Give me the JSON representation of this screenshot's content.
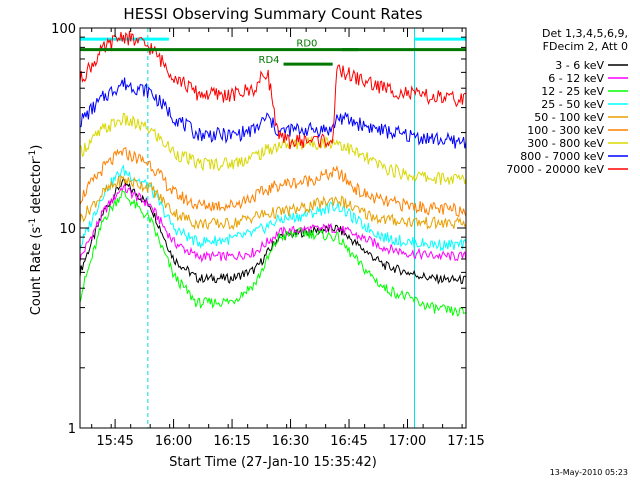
{
  "chart_data": {
    "type": "line",
    "title": "HESSI Observing Summary Count Rates",
    "xlabel": "Start Time (27-Jan-10 15:35:42)",
    "ylabel_main": "Count Rate (s",
    "ylabel_sup": "-1",
    "ylabel_tail": " detector",
    "ylabel_close": ")",
    "y_scale": "log",
    "ylim": [
      1,
      100
    ],
    "xlim": [
      15.6,
      17.25
    ],
    "y_ticks": [
      {
        "v": 1,
        "label": "1"
      },
      {
        "v": 10,
        "label": "10"
      },
      {
        "v": 100,
        "label": "100"
      }
    ],
    "x_ticks": [
      {
        "v": 15.75,
        "label": "15:45"
      },
      {
        "v": 16.0,
        "label": "16:00"
      },
      {
        "v": 16.25,
        "label": "16:15"
      },
      {
        "v": 16.5,
        "label": "16:30"
      },
      {
        "v": 16.75,
        "label": "16:45"
      },
      {
        "v": 17.0,
        "label": "17:00"
      },
      {
        "v": 17.25,
        "label": "17:15"
      }
    ],
    "legend_header": [
      "Det 1,3,4,5,6,9,",
      "FDecim 2, Att 0"
    ],
    "legend_placement": "right",
    "series": [
      {
        "name": "3 - 6 keV",
        "color": "#000000",
        "x": [
          15.6,
          15.7,
          15.78,
          15.9,
          16.0,
          16.1,
          16.25,
          16.35,
          16.45,
          16.55,
          16.7,
          16.8,
          16.9,
          17.0,
          17.1,
          17.2,
          17.25
        ],
        "y": [
          6,
          12,
          17,
          13,
          7,
          5.6,
          5.6,
          6.2,
          9,
          9.5,
          10,
          8,
          6.5,
          6,
          5.6,
          5.5,
          5.5
        ]
      },
      {
        "name": "6 - 12 keV",
        "color": "#ff00ff",
        "x": [
          15.6,
          15.7,
          15.78,
          15.9,
          16.0,
          16.1,
          16.25,
          16.35,
          16.45,
          16.55,
          16.7,
          16.8,
          16.9,
          17.0,
          17.1,
          17.2,
          17.25
        ],
        "y": [
          7,
          12,
          16,
          13,
          8.5,
          7.2,
          7.2,
          7.6,
          9.5,
          9.8,
          10,
          9,
          8,
          7.5,
          7.3,
          7.2,
          7.2
        ]
      },
      {
        "name": "12 - 25 keV",
        "color": "#00ff00",
        "x": [
          15.6,
          15.7,
          15.78,
          15.9,
          16.0,
          16.1,
          16.25,
          16.35,
          16.45,
          16.55,
          16.7,
          16.8,
          16.9,
          17.0,
          17.1,
          17.2,
          17.25
        ],
        "y": [
          4.5,
          11,
          15,
          11,
          5.8,
          4.2,
          4.3,
          5.3,
          9,
          9.5,
          9,
          6.5,
          5,
          4.5,
          4,
          3.8,
          3.8
        ]
      },
      {
        "name": "25 - 50 keV",
        "color": "#00ffff",
        "x": [
          15.6,
          15.7,
          15.78,
          15.9,
          16.0,
          16.1,
          16.25,
          16.35,
          16.45,
          16.55,
          16.7,
          16.8,
          16.9,
          17.0,
          17.1,
          17.2,
          17.25
        ],
        "y": [
          8,
          15,
          19.5,
          16,
          10,
          8.5,
          8.8,
          9.5,
          11,
          11.5,
          13,
          10.5,
          9,
          8.5,
          8.3,
          8.2,
          8.2
        ]
      },
      {
        "name": "50 - 100 keV",
        "color": "#e8a000",
        "x": [
          15.6,
          15.7,
          15.78,
          15.9,
          16.0,
          16.1,
          16.25,
          16.35,
          16.45,
          16.55,
          16.7,
          16.8,
          16.9,
          17.0,
          17.1,
          17.2,
          17.25
        ],
        "y": [
          11,
          15,
          17.5,
          16,
          12,
          10.5,
          10.5,
          11.5,
          12,
          12.5,
          14,
          12,
          11,
          10.8,
          10.6,
          10.5,
          10.5
        ]
      },
      {
        "name": "100 - 300 keV",
        "color": "#ff8000",
        "x": [
          15.6,
          15.7,
          15.78,
          15.9,
          16.0,
          16.1,
          16.25,
          16.35,
          16.45,
          16.55,
          16.7,
          16.8,
          16.9,
          17.0,
          17.1,
          17.2,
          17.25
        ],
        "y": [
          14,
          20,
          24,
          21,
          15,
          13,
          13,
          14.5,
          16.5,
          17,
          19,
          15,
          13.5,
          13,
          12.5,
          12.3,
          12.3
        ]
      },
      {
        "name": "300 - 800 keV",
        "color": "#d8d800",
        "x": [
          15.6,
          15.7,
          15.78,
          15.9,
          16.0,
          16.1,
          16.25,
          16.35,
          16.45,
          16.55,
          16.7,
          16.8,
          16.9,
          17.0,
          17.1,
          17.2,
          17.25
        ],
        "y": [
          24,
          31,
          35,
          31,
          24,
          21,
          21,
          23,
          26,
          26.5,
          27,
          23,
          20,
          18.5,
          17.8,
          17.5,
          17.5
        ]
      },
      {
        "name": "800 - 7000 keV",
        "color": "#0000ff",
        "x": [
          15.6,
          15.7,
          15.78,
          15.9,
          16.0,
          16.1,
          16.25,
          16.35,
          16.4,
          16.45,
          16.5,
          16.6,
          16.68,
          16.7,
          16.8,
          16.9,
          17.0,
          17.1,
          17.2,
          17.25
        ],
        "y": [
          34,
          45,
          53,
          48,
          36,
          29.5,
          29,
          31,
          36,
          30,
          31,
          31,
          31,
          36,
          33,
          30.5,
          29,
          28,
          27,
          27
        ]
      },
      {
        "name": "7000 - 20000 keV",
        "color": "#ff0000",
        "x": [
          15.6,
          15.7,
          15.78,
          15.9,
          16.0,
          16.1,
          16.25,
          16.35,
          16.4,
          16.45,
          16.5,
          16.6,
          16.68,
          16.7,
          16.8,
          16.9,
          17.0,
          17.1,
          17.2,
          17.25
        ],
        "y": [
          55,
          78,
          92,
          80,
          58,
          47,
          46,
          50,
          62,
          28,
          27,
          27.5,
          27.5,
          62,
          55,
          50,
          47,
          45,
          44,
          44
        ]
      }
    ],
    "attenuator_bars": [
      {
        "label": "",
        "x": [
          15.6,
          16.79
        ],
        "y": 78,
        "color": "#007700"
      },
      {
        "label": "RD4",
        "x": [
          16.47,
          16.68
        ],
        "y": 66,
        "color": "#007700"
      },
      {
        "label": "RD0",
        "x": [
          16.57,
          16.57
        ],
        "y": 0,
        "color": "#007700"
      },
      {
        "label": "",
        "x": [
          16.72,
          17.25
        ],
        "y": 78,
        "color": "#007700"
      }
    ],
    "saa_bars": [
      {
        "x": [
          15.6,
          15.98
        ],
        "y": 88,
        "color": "#00ffff"
      },
      {
        "x": [
          17.03,
          17.25
        ],
        "y": 88,
        "color": "#00ffff"
      }
    ],
    "vlines_solid": [
      15.6,
      17.03
    ],
    "vlines_dashed": [
      15.89,
      17.25
    ],
    "footer_note": "13-May-2010 05:23"
  }
}
